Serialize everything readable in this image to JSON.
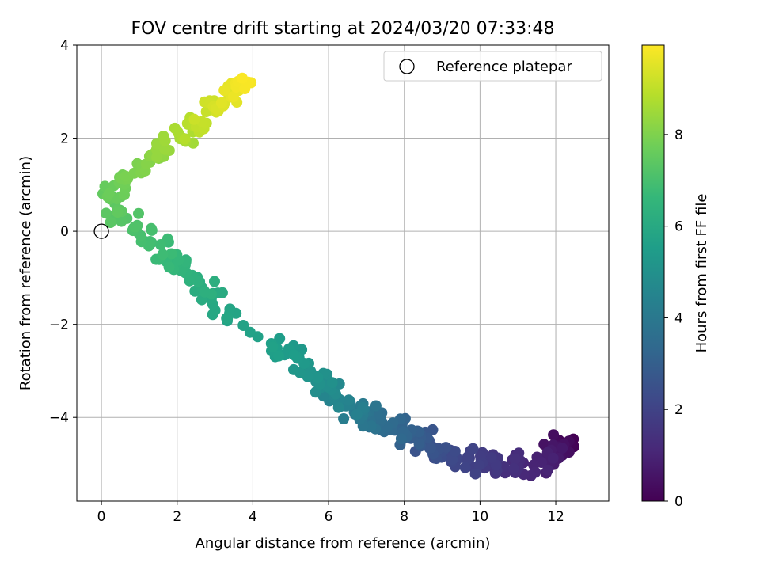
{
  "chart_data": {
    "type": "scatter",
    "title": "FOV centre drift starting at 2024/03/20 07:33:48",
    "xlabel": "Angular distance from reference (arcmin)",
    "ylabel": "Rotation from reference (arcmin)",
    "xlim": [
      -0.65,
      13.4
    ],
    "ylim": [
      -5.8,
      4.0
    ],
    "xticks": [
      0,
      2,
      4,
      6,
      8,
      10,
      12
    ],
    "yticks": [
      -4,
      -2,
      0,
      2,
      4
    ],
    "xtick_labels": [
      "0",
      "2",
      "4",
      "6",
      "8",
      "10",
      "12"
    ],
    "ytick_labels": [
      "−4",
      "−2",
      "0",
      "2",
      "4"
    ],
    "grid": true,
    "legend": {
      "position": "top-right",
      "entries": [
        {
          "label": "Reference platepar",
          "marker": "open-circle"
        }
      ]
    },
    "reference_point": {
      "x": 0,
      "y": 0
    },
    "colorbar": {
      "label": "Hours from first FF file",
      "colormap": "viridis",
      "range": [
        0,
        9.95
      ],
      "ticks": [
        0,
        2,
        4,
        6,
        8
      ],
      "tick_labels": [
        "0",
        "2",
        "4",
        "6",
        "8"
      ]
    },
    "colormap_stops": [
      "#440154",
      "#482878",
      "#3e4989",
      "#31688e",
      "#26828e",
      "#1f9e89",
      "#35b779",
      "#6ece58",
      "#b5de2b",
      "#fde725"
    ],
    "trajectory_nodes": [
      {
        "t": 0.0,
        "x": 12.3,
        "y": -4.55
      },
      {
        "t": 0.5,
        "x": 12.1,
        "y": -4.7
      },
      {
        "t": 1.0,
        "x": 11.5,
        "y": -5.0
      },
      {
        "t": 1.5,
        "x": 10.5,
        "y": -5.05
      },
      {
        "t": 2.0,
        "x": 9.6,
        "y": -4.9
      },
      {
        "t": 2.5,
        "x": 8.8,
        "y": -4.65
      },
      {
        "t": 3.0,
        "x": 8.2,
        "y": -4.35
      },
      {
        "t": 3.5,
        "x": 7.5,
        "y": -4.15
      },
      {
        "t": 4.0,
        "x": 6.9,
        "y": -4.0
      },
      {
        "t": 4.5,
        "x": 6.3,
        "y": -3.6
      },
      {
        "t": 5.0,
        "x": 5.8,
        "y": -3.2
      },
      {
        "t": 5.3,
        "x": 5.2,
        "y": -2.75
      },
      {
        "t": 5.6,
        "x": 4.6,
        "y": -2.5
      },
      {
        "t": 5.75,
        "x": 3.5,
        "y": -1.9
      },
      {
        "t": 6.0,
        "x": 3.0,
        "y": -1.5
      },
      {
        "t": 6.3,
        "x": 2.5,
        "y": -1.05
      },
      {
        "t": 6.7,
        "x": 1.7,
        "y": -0.5
      },
      {
        "t": 7.0,
        "x": 1.0,
        "y": -0.05
      },
      {
        "t": 7.3,
        "x": 0.4,
        "y": 0.3
      },
      {
        "t": 7.6,
        "x": 0.2,
        "y": 0.75
      },
      {
        "t": 7.8,
        "x": 0.5,
        "y": 1.05
      },
      {
        "t": 8.0,
        "x": 1.0,
        "y": 1.35
      },
      {
        "t": 8.3,
        "x": 1.6,
        "y": 1.7
      },
      {
        "t": 8.6,
        "x": 2.1,
        "y": 2.0
      },
      {
        "t": 9.0,
        "x": 2.6,
        "y": 2.35
      },
      {
        "t": 9.3,
        "x": 3.0,
        "y": 2.7
      },
      {
        "t": 9.6,
        "x": 3.4,
        "y": 3.0
      },
      {
        "t": 9.9,
        "x": 3.9,
        "y": 3.2
      }
    ],
    "point_count": 420
  }
}
